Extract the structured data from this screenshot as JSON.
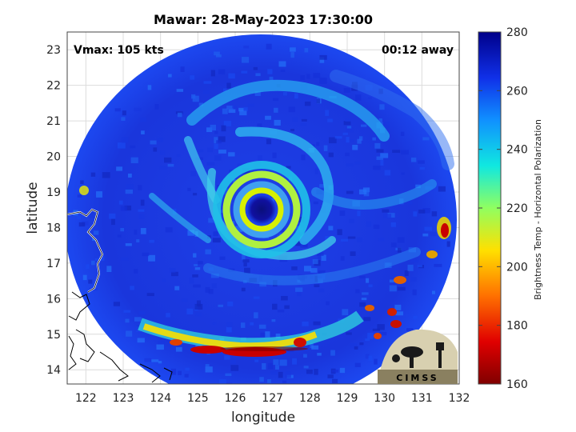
{
  "title": "Mawar: 28-May-2023 17:30:00",
  "vmax_label": "Vmax: 105 kts",
  "time_label": "00:12 away",
  "xlabel": "longitude",
  "ylabel": "latitude",
  "x_ticks": [
    "122",
    "123",
    "124",
    "125",
    "126",
    "127",
    "128",
    "129",
    "130",
    "131",
    "132"
  ],
  "y_ticks": [
    "14",
    "15",
    "16",
    "17",
    "18",
    "19",
    "20",
    "21",
    "22",
    "23"
  ],
  "colorbar": {
    "label": "Brightness Temp - Horizontal Polarization",
    "ticks": [
      "160",
      "180",
      "200",
      "220",
      "240",
      "260",
      "280"
    ],
    "min": 160,
    "max": 280
  },
  "logo_text": "CIMSS",
  "colors": {
    "background_swath": "#1f3ae0",
    "eye": "#0a0f7a",
    "eyewall": "#d8f000",
    "rainband_low": "#c80000"
  }
}
